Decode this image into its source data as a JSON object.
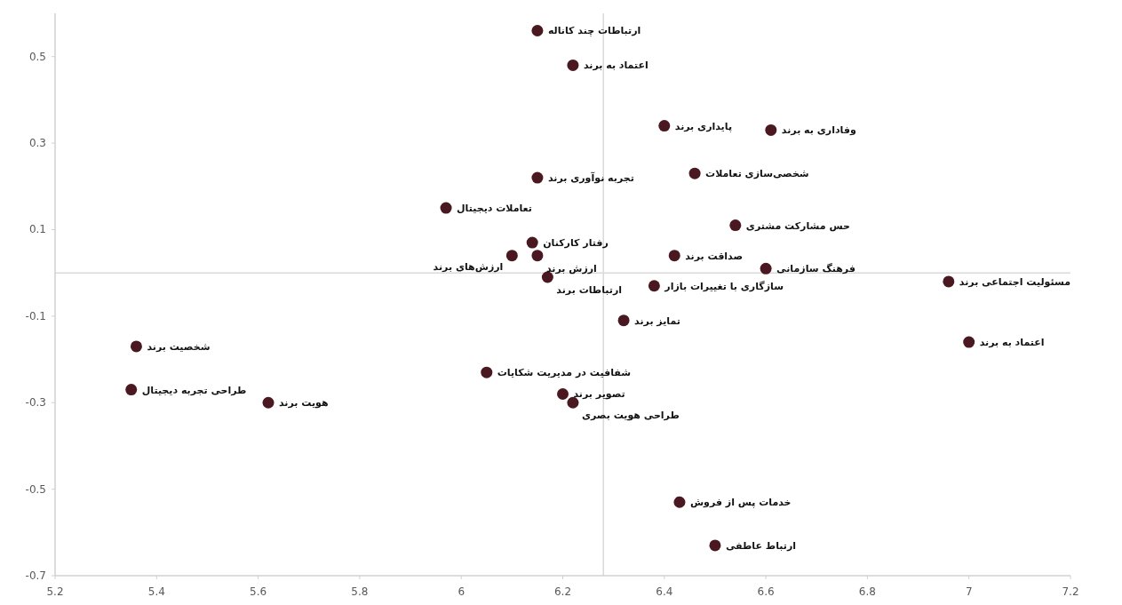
{
  "chart_data": {
    "type": "scatter",
    "marker": "circle",
    "grid": false,
    "xlim": [
      5.2,
      7.2
    ],
    "ylim": [
      -0.7,
      0.6
    ],
    "xticks": [
      5.2,
      5.4,
      5.6,
      5.8,
      6,
      6.2,
      6.4,
      6.6,
      6.8,
      7,
      7.2
    ],
    "yticks": [
      0.5,
      0.3,
      0.1,
      -0.1,
      -0.3,
      -0.5,
      -0.7
    ],
    "ref_lines": [
      {
        "axis": "x",
        "value": 6.28,
        "color": "#d9d9d9"
      },
      {
        "axis": "y",
        "value": 0,
        "color": "#d9d9d9"
      }
    ],
    "series": [
      {
        "color": "#4a1820",
        "x": [
          6.15,
          6.22,
          6.4,
          6.61,
          6.15,
          6.46,
          5.97,
          6.54,
          6.14,
          6.1,
          6.15,
          6.42,
          6.6,
          6.17,
          6.38,
          6.96,
          6.32,
          7.0,
          5.36,
          6.05,
          5.35,
          5.62,
          6.2,
          6.22,
          6.43,
          6.5
        ],
        "values": [
          0.56,
          0.48,
          0.34,
          0.33,
          0.22,
          0.23,
          0.15,
          0.11,
          0.07,
          0.04,
          0.04,
          0.04,
          0.01,
          -0.01,
          -0.03,
          -0.02,
          -0.11,
          -0.16,
          -0.17,
          -0.23,
          -0.27,
          -0.3,
          -0.28,
          -0.3,
          -0.53,
          -0.63
        ]
      }
    ],
    "annotations": [
      {
        "text": "ارتباطات چند کاناله",
        "x": 6.15,
        "y": 0.56
      },
      {
        "text": "اعتماد به برند",
        "x": 6.22,
        "y": 0.48
      },
      {
        "text": "پایداری برند",
        "x": 6.4,
        "y": 0.34
      },
      {
        "text": "وفاداری به برند",
        "x": 6.61,
        "y": 0.33
      },
      {
        "text": "تجربه نوآوری برند",
        "x": 6.15,
        "y": 0.22
      },
      {
        "text": "شخصی‌سازی تعاملات",
        "x": 6.46,
        "y": 0.23
      },
      {
        "text": "تعاملات دیجیتال",
        "x": 5.97,
        "y": 0.15
      },
      {
        "text": "حس مشارکت مشتری",
        "x": 6.54,
        "y": 0.11
      },
      {
        "text": "رفتار کارکنان",
        "x": 6.14,
        "y": 0.07
      },
      {
        "text": "ارزش‌های برند",
        "x": 6.1,
        "y": 0.04
      },
      {
        "text": "ارزش برند",
        "x": 6.15,
        "y": 0.04
      },
      {
        "text": "صداقت برند",
        "x": 6.42,
        "y": 0.04
      },
      {
        "text": "فرهنگ سازمانی",
        "x": 6.6,
        "y": 0.01
      },
      {
        "text": "ارتباطات برند",
        "x": 6.17,
        "y": -0.01
      },
      {
        "text": "سازگاری با تغییرات بازار",
        "x": 6.38,
        "y": -0.03
      },
      {
        "text": "مسئولیت اجتماعی برند",
        "x": 6.96,
        "y": -0.02
      },
      {
        "text": "تمایز برند",
        "x": 6.32,
        "y": -0.11
      },
      {
        "text": "اعتماد به برند",
        "x": 7.0,
        "y": -0.16
      },
      {
        "text": "شخصیت برند",
        "x": 5.36,
        "y": -0.17
      },
      {
        "text": "شفافیت در مدیریت شکایات",
        "x": 6.05,
        "y": -0.23
      },
      {
        "text": "طراحی تجربه دیجیتال",
        "x": 5.35,
        "y": -0.27
      },
      {
        "text": "هویت برند",
        "x": 5.62,
        "y": -0.3
      },
      {
        "text": "تصویر برند",
        "x": 6.2,
        "y": -0.28
      },
      {
        "text": "طراحی هویت بصری",
        "x": 6.22,
        "y": -0.3
      },
      {
        "text": "خدمات پس از فروش",
        "x": 6.43,
        "y": -0.53
      },
      {
        "text": "ارتباط عاطفی",
        "x": 6.5,
        "y": -0.63
      }
    ]
  }
}
